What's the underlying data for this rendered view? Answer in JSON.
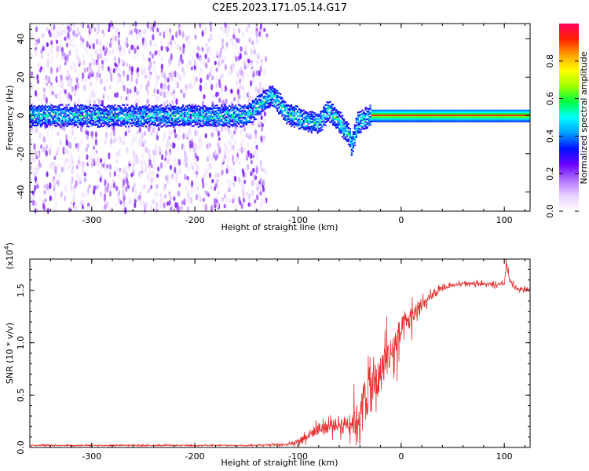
{
  "title": "C2E5.2023.171.05.14.G17",
  "chart_data": [
    {
      "type": "heatmap",
      "xlabel": "Height of straight line (km)",
      "ylabel": "Frequency (Hz)",
      "xlim": [
        -360,
        125
      ],
      "ylim": [
        -50,
        48
      ],
      "xticks": [
        -300,
        -200,
        -100,
        0,
        100
      ],
      "yticks": [
        -40,
        -20,
        0,
        20,
        40
      ],
      "colorbar": {
        "label": "Normalized spectral amplitude",
        "range": [
          0.0,
          1.0
        ],
        "ticks": [
          "0.0",
          "0.2",
          "0.4",
          "0.6",
          "0.8"
        ],
        "tick_values": [
          0.0,
          0.2,
          0.4,
          0.6,
          0.8
        ],
        "colors": [
          "#ffffff",
          "#e8d0ff",
          "#b070ff",
          "#6a00ff",
          "#0010ff",
          "#00a0ff",
          "#00ffff",
          "#00ff40",
          "#a0ff00",
          "#ffff00",
          "#ffa000",
          "#ff2000",
          "#ff0060"
        ]
      },
      "ridge": [
        {
          "x": -350,
          "f": 0
        },
        {
          "x": -300,
          "f": 0
        },
        {
          "x": -250,
          "f": 0
        },
        {
          "x": -200,
          "f": 0
        },
        {
          "x": -150,
          "f": 0
        },
        {
          "x": -125,
          "f": 11
        },
        {
          "x": -110,
          "f": 1
        },
        {
          "x": -95,
          "f": -2
        },
        {
          "x": -80,
          "f": -4
        },
        {
          "x": -70,
          "f": 3
        },
        {
          "x": -60,
          "f": -3
        },
        {
          "x": -50,
          "f": -10
        },
        {
          "x": -48,
          "f": -16
        },
        {
          "x": -42,
          "f": -4
        },
        {
          "x": -30,
          "f": 0
        },
        {
          "x": 0,
          "f": 0
        },
        {
          "x": 50,
          "f": 0
        },
        {
          "x": 100,
          "f": 0
        },
        {
          "x": 125,
          "f": 0
        }
      ]
    },
    {
      "type": "line",
      "xlabel": "Height of straight line (km)",
      "ylabel": "SNR (10 * v/v)",
      "multiplier": "(x10",
      "multiplier_exp": "4",
      "multiplier_close": ")",
      "xlim": [
        -360,
        125
      ],
      "ylim": [
        0,
        1.8
      ],
      "xticks": [
        -300,
        -200,
        -100,
        0,
        100
      ],
      "yticks": [
        "0.0",
        "0.5",
        "1.0",
        "1.5"
      ],
      "ytick_values": [
        0.0,
        0.5,
        1.0,
        1.5
      ],
      "series": [
        {
          "color": "#e83030",
          "x": [
            -360,
            -300,
            -200,
            -150,
            -110,
            -100,
            -90,
            -80,
            -70,
            -60,
            -50,
            -45,
            -40,
            -35,
            -30,
            -25,
            -20,
            -15,
            -10,
            -5,
            0,
            10,
            20,
            30,
            40,
            50,
            60,
            70,
            80,
            90,
            100,
            102,
            105,
            110,
            125
          ],
          "y": [
            0.02,
            0.02,
            0.02,
            0.02,
            0.03,
            0.06,
            0.12,
            0.18,
            0.2,
            0.22,
            0.24,
            0.26,
            0.3,
            0.5,
            0.55,
            0.6,
            0.7,
            0.85,
            0.9,
            1.0,
            1.1,
            1.25,
            1.35,
            1.45,
            1.52,
            1.55,
            1.57,
            1.57,
            1.56,
            1.55,
            1.56,
            1.75,
            1.6,
            1.52,
            1.5
          ],
          "noise_amp": [
            0.01,
            0.01,
            0.01,
            0.01,
            0.02,
            0.05,
            0.1,
            0.15,
            0.15,
            0.15,
            0.2,
            0.4,
            0.3,
            0.6,
            0.55,
            0.5,
            0.45,
            0.45,
            0.4,
            0.45,
            0.35,
            0.25,
            0.12,
            0.08,
            0.05,
            0.04,
            0.04,
            0.04,
            0.04,
            0.04,
            0.04,
            0.1,
            0.06,
            0.04,
            0.04
          ]
        }
      ]
    }
  ]
}
